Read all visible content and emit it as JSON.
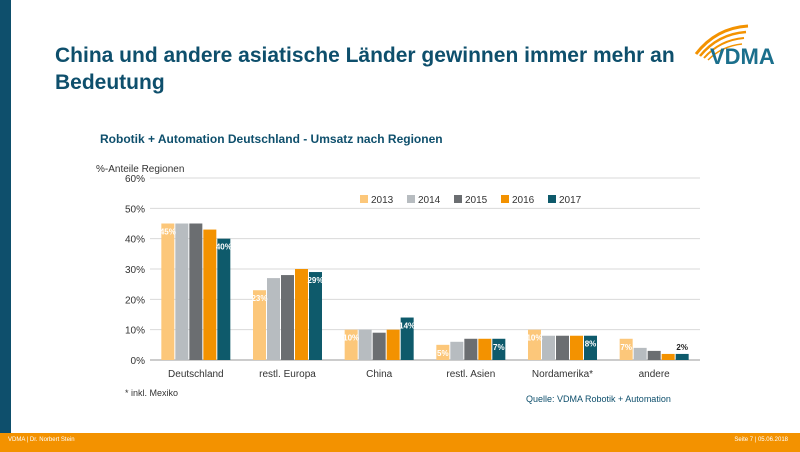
{
  "slide": {
    "title": "China und andere asiatische Länder gewinnen immer mehr an Bedeutung",
    "logo_text": "VDMA",
    "footnote": "* inkl. Mexiko",
    "source": "Quelle: VDMA Robotik + Automation",
    "footer_left": "VDMA | Dr. Norbert Stein",
    "footer_right": "Seite 7 | 05.06.2018",
    "colors": {
      "brand": "#0e4f6c",
      "footer": "#f39200"
    }
  },
  "chart_data": {
    "type": "bar",
    "title": "Robotik + Automation Deutschland - Umsatz nach Regionen",
    "ylabel": "%-Anteile Regionen",
    "xlabel": "",
    "ylim": [
      0,
      60
    ],
    "yticks": [
      "0%",
      "10%",
      "20%",
      "30%",
      "40%",
      "50%",
      "60%"
    ],
    "grid": true,
    "legend_position": "top-right",
    "categories": [
      "Deutschland",
      "restl. Europa",
      "China",
      "restl. Asien",
      "Nordamerika*",
      "andere"
    ],
    "series": [
      {
        "name": "2013",
        "color": "#fcc77a",
        "values": [
          45,
          23,
          10,
          5,
          10,
          7
        ]
      },
      {
        "name": "2014",
        "color": "#b7bcc0",
        "values": [
          45,
          27,
          10,
          6,
          8,
          4
        ]
      },
      {
        "name": "2015",
        "color": "#6b6e71",
        "values": [
          45,
          28,
          9,
          7,
          8,
          3
        ]
      },
      {
        "name": "2016",
        "color": "#f39200",
        "values": [
          43,
          30,
          10,
          7,
          8,
          2
        ]
      },
      {
        "name": "2017",
        "color": "#0e5a6b",
        "values": [
          40,
          29,
          14,
          7,
          8,
          2
        ]
      }
    ],
    "data_labels": [
      {
        "category": 0,
        "series": 0,
        "text": "45%"
      },
      {
        "category": 0,
        "series": 4,
        "text": "40%"
      },
      {
        "category": 1,
        "series": 0,
        "text": "23%"
      },
      {
        "category": 1,
        "series": 4,
        "text": "29%"
      },
      {
        "category": 2,
        "series": 0,
        "text": "10%"
      },
      {
        "category": 2,
        "series": 4,
        "text": "14%"
      },
      {
        "category": 3,
        "series": 0,
        "text": "5%"
      },
      {
        "category": 3,
        "series": 4,
        "text": "7%"
      },
      {
        "category": 4,
        "series": 0,
        "text": "10%"
      },
      {
        "category": 4,
        "series": 4,
        "text": "8%"
      },
      {
        "category": 5,
        "series": 0,
        "text": "7%"
      },
      {
        "category": 5,
        "series": 4,
        "text": "2%"
      }
    ]
  }
}
